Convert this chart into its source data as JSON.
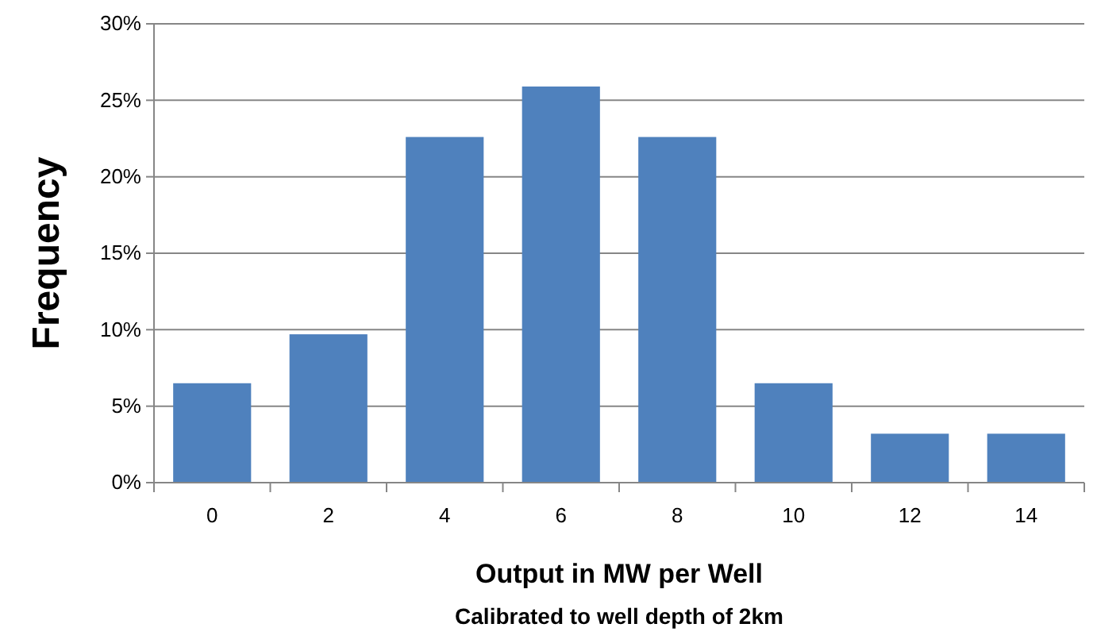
{
  "chart_data": {
    "type": "bar",
    "categories": [
      "0",
      "2",
      "4",
      "6",
      "8",
      "10",
      "12",
      "14"
    ],
    "values": [
      6.5,
      9.7,
      22.6,
      25.9,
      22.6,
      6.5,
      3.2,
      3.2
    ],
    "color": "#4f81bd",
    "ylim": [
      0,
      30
    ],
    "yticks": [
      {
        "value": 0,
        "label": "0%"
      },
      {
        "value": 5,
        "label": "5%"
      },
      {
        "value": 10,
        "label": "10%"
      },
      {
        "value": 15,
        "label": "15%"
      },
      {
        "value": 20,
        "label": "20%"
      },
      {
        "value": 25,
        "label": "25%"
      },
      {
        "value": 30,
        "label": "30%"
      }
    ],
    "grid": "y",
    "xlabel": "Output in MW per Well",
    "ylabel": "Frequency",
    "annotations": [
      "Calibrated to well depth of 2km"
    ]
  }
}
